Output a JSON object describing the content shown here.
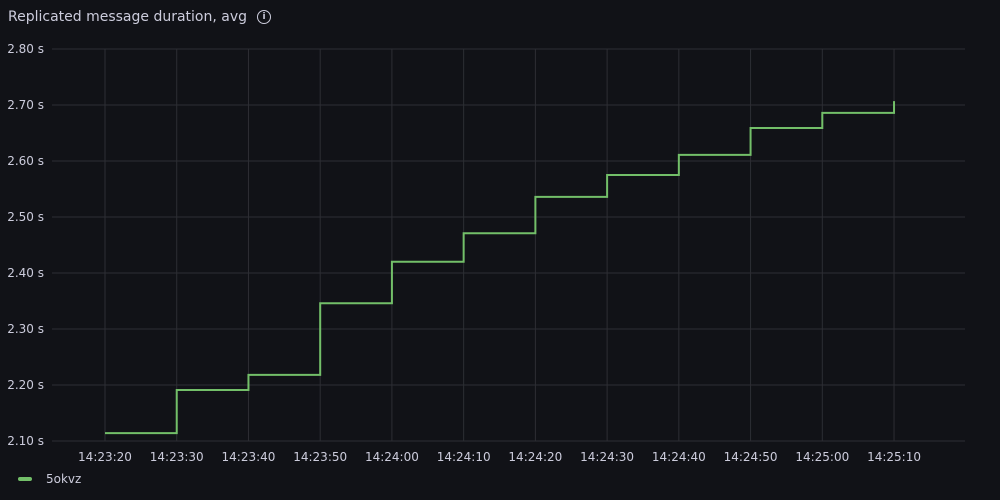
{
  "panel": {
    "title": "Replicated message duration, avg",
    "info_icon": "info-circle-icon"
  },
  "chart_data": {
    "type": "line",
    "interpolation": "step-after",
    "title": "Replicated message duration, avg",
    "xlabel": "",
    "ylabel": "",
    "y_unit": "s",
    "ylim": [
      2.1,
      2.8
    ],
    "yticks": [
      "2.10 s",
      "2.20 s",
      "2.30 s",
      "2.40 s",
      "2.50 s",
      "2.60 s",
      "2.70 s",
      "2.80 s"
    ],
    "xticks": [
      "14:23:20",
      "14:23:30",
      "14:23:40",
      "14:23:50",
      "14:24:00",
      "14:24:10",
      "14:24:20",
      "14:24:30",
      "14:24:40",
      "14:24:50",
      "14:25:00",
      "14:25:10"
    ],
    "grid": true,
    "legend_position": "bottom-left",
    "series": [
      {
        "name": "5okvz",
        "color": "#73bf69",
        "x": [
          "14:23:20",
          "14:23:30",
          "14:23:40",
          "14:23:50",
          "14:24:00",
          "14:24:10",
          "14:24:20",
          "14:24:30",
          "14:24:40",
          "14:24:50",
          "14:25:00",
          "14:25:10"
        ],
        "values": [
          2.114,
          2.191,
          2.218,
          2.346,
          2.42,
          2.471,
          2.536,
          2.575,
          2.611,
          2.659,
          2.686,
          2.707
        ]
      }
    ]
  }
}
